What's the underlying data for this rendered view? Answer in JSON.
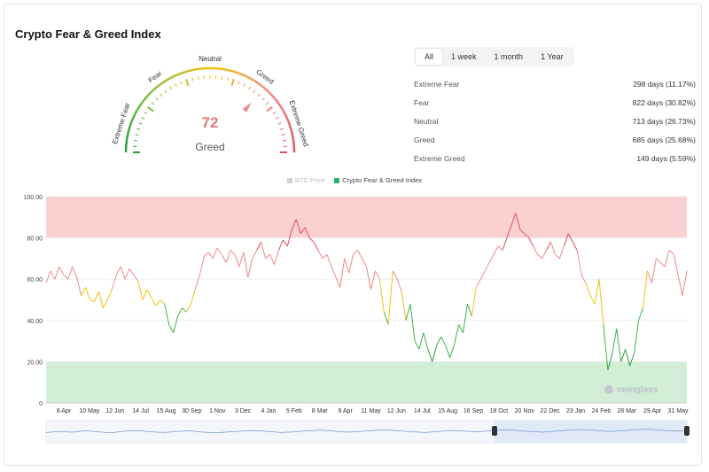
{
  "page": {
    "title": "Crypto Fear & Greed Index"
  },
  "gauge": {
    "value": "72",
    "value_num": 72,
    "label": "Greed",
    "zones": [
      "Extreme Fear",
      "Fear",
      "Neutral",
      "Greed",
      "Extreme Greed"
    ]
  },
  "tabs": [
    {
      "label": "All",
      "active": true
    },
    {
      "label": "1 week",
      "active": false
    },
    {
      "label": "1 month",
      "active": false
    },
    {
      "label": "1 Year",
      "active": false
    }
  ],
  "stats": [
    {
      "label": "Extreme Fear",
      "value": "298 days (11.17%)"
    },
    {
      "label": "Fear",
      "value": "822 days (30.82%)"
    },
    {
      "label": "Neutral",
      "value": "713 days (26.73%)"
    },
    {
      "label": "Greed",
      "value": "685 days (25.68%)"
    },
    {
      "label": "Extreme Greed",
      "value": "149 days (5.59%)"
    }
  ],
  "watermark": "coinglass",
  "colors": {
    "extreme_fear": "#2e9e44",
    "fear": "#8bc34a",
    "neutral": "#f1c40f",
    "greed": "#f08a8a",
    "extreme_greed": "#e04f5f",
    "greed_band": "#fbd0d0",
    "fear_band": "#d2eed6",
    "navigator": "#dbe6f7"
  },
  "chart_data": {
    "type": "line",
    "legend": [
      {
        "name": "BTC Price",
        "color": "#c8c8c8",
        "active": false
      },
      {
        "name": "Crypto Fear & Greed Index",
        "color": "#26b36a",
        "active": true
      }
    ],
    "x_ticks": [
      "8 Apr",
      "10 May",
      "12 Jun",
      "14 Jul",
      "15 Aug",
      "30 Sep",
      "1 Nov",
      "3 Dec",
      "4 Jan",
      "5 Feb",
      "8 Mar",
      "9 Apr",
      "11 May",
      "12 Jun",
      "14 Jul",
      "15 Aug",
      "16 Sep",
      "18 Oct",
      "20 Nov",
      "22 Dec",
      "23 Jan",
      "24 Feb",
      "28 Mar",
      "29 Apr",
      "31 May"
    ],
    "y_ticks": [
      "100.00",
      "80.00",
      "60.00",
      "40.00",
      "20.00",
      "0"
    ],
    "ylim": [
      0,
      100
    ],
    "bands": [
      {
        "from": 80,
        "to": 100,
        "color": "#fbd0d0"
      },
      {
        "from": 0,
        "to": 20,
        "color": "#d2eed6"
      }
    ],
    "series": [
      {
        "name": "Crypto Fear & Greed Index",
        "values": [
          58,
          64,
          60,
          66,
          62,
          60,
          66,
          61,
          52,
          56,
          50,
          49,
          54,
          46,
          50,
          55,
          62,
          66,
          60,
          65,
          62,
          59,
          50,
          55,
          51,
          47,
          50,
          48,
          38,
          34,
          42,
          46,
          44,
          48,
          55,
          62,
          71,
          73,
          70,
          75,
          72,
          68,
          74,
          72,
          66,
          73,
          61,
          70,
          74,
          78,
          70,
          72,
          67,
          74,
          79,
          76,
          84,
          89,
          82,
          85,
          80,
          78,
          74,
          70,
          72,
          66,
          61,
          56,
          70,
          63,
          72,
          74,
          70,
          66,
          55,
          64,
          60,
          44,
          38,
          64,
          60,
          54,
          40,
          48,
          30,
          26,
          34,
          26,
          20,
          28,
          32,
          28,
          22,
          28,
          38,
          34,
          48,
          42,
          56,
          60,
          64,
          68,
          72,
          76,
          74,
          80,
          86,
          92,
          84,
          82,
          80,
          76,
          72,
          70,
          74,
          78,
          72,
          70,
          76,
          82,
          78,
          74,
          62,
          58,
          52,
          48,
          60,
          38,
          16,
          24,
          36,
          20,
          26,
          18,
          24,
          40,
          46,
          64,
          58,
          70,
          68,
          66,
          74,
          72,
          62,
          52,
          64
        ]
      }
    ]
  },
  "navigator_values": [
    40,
    46,
    42,
    50,
    44,
    38,
    48,
    52,
    44,
    40,
    46,
    50,
    42,
    38,
    44,
    48,
    52,
    46,
    40,
    44,
    50,
    54,
    48,
    42,
    46,
    52,
    56,
    50,
    44,
    40,
    46,
    52,
    48,
    44,
    50,
    56,
    52,
    46,
    42,
    48,
    54,
    58,
    52,
    46,
    50,
    56,
    60,
    54,
    48,
    52
  ]
}
